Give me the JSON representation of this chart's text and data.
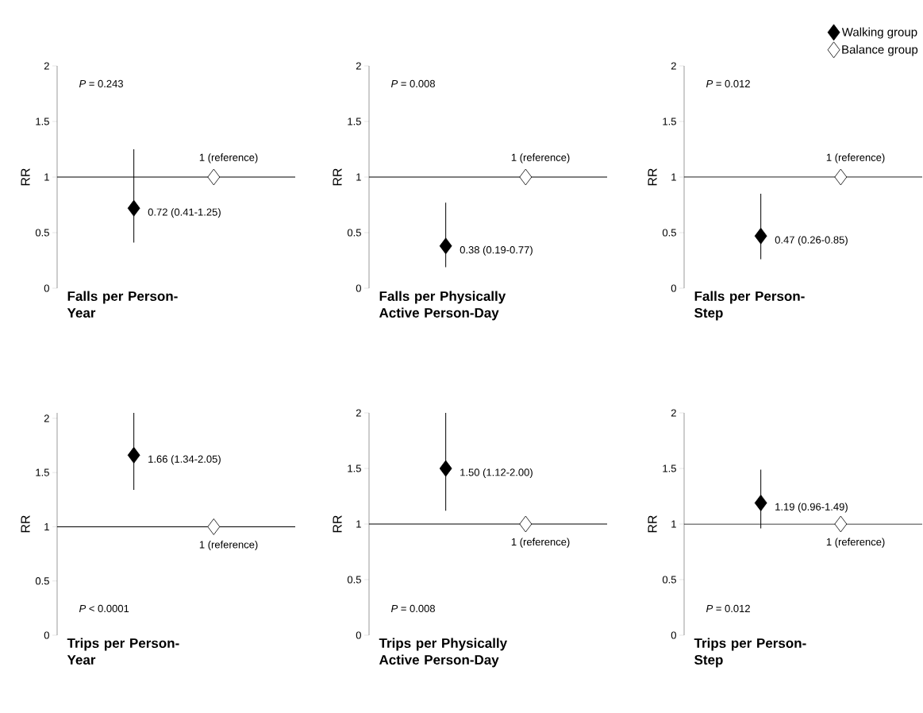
{
  "chart_data": [
    {
      "type": "scatter",
      "xlabel": "Falls per Person-Year",
      "ylabel": "RR",
      "categories": [
        null,
        null
      ],
      "ylim": [
        0,
        2
      ],
      "yticks": [
        0,
        0.5,
        1,
        1.5,
        2
      ],
      "marker": "diamond",
      "annotations": [
        "*P* = 0.243"
      ],
      "ref_lines": [
        {
          "axis": "y",
          "value": 1
        }
      ],
      "series": [
        {
          "color": "#000000",
          "values": [
            0.72,
            null
          ],
          "errors": [
            [
              0.41,
              1.25
            ],
            null
          ],
          "value_labels": [
            "0.72 (0.41-1.25)",
            null
          ]
        },
        {
          "color": "#ffffff",
          "values": [
            null,
            1
          ],
          "value_labels": [
            null,
            "1 (reference)"
          ]
        }
      ]
    },
    {
      "type": "scatter",
      "xlabel": "Falls per Physically Active Person-Day",
      "ylabel": "RR",
      "categories": [
        null,
        null
      ],
      "ylim": [
        0,
        2
      ],
      "yticks": [
        0,
        0.5,
        1,
        1.5,
        2
      ],
      "marker": "diamond",
      "annotations": [
        "*P* = 0.008"
      ],
      "ref_lines": [
        {
          "axis": "y",
          "value": 1
        }
      ],
      "series": [
        {
          "color": "#000000",
          "values": [
            0.38,
            null
          ],
          "errors": [
            [
              0.19,
              0.77
            ],
            null
          ],
          "value_labels": [
            "0.38 (0.19-0.77)",
            null
          ]
        },
        {
          "color": "#ffffff",
          "values": [
            null,
            1
          ],
          "value_labels": [
            null,
            "1 (reference)"
          ]
        }
      ]
    },
    {
      "type": "scatter",
      "xlabel": "Falls per Person-Step",
      "ylabel": "RR",
      "categories": [
        null,
        null
      ],
      "ylim": [
        0,
        2
      ],
      "yticks": [
        0,
        0.5,
        1,
        1.5,
        2
      ],
      "marker": "diamond",
      "legend": "top right",
      "annotations": [
        "*P* = 0.012"
      ],
      "ref_lines": [
        {
          "axis": "y",
          "value": 1
        }
      ],
      "series": [
        {
          "name": "Walking group",
          "color": "#000000",
          "values": [
            0.47,
            null
          ],
          "errors": [
            [
              0.26,
              0.85
            ],
            null
          ],
          "value_labels": [
            "0.47 (0.26-0.85)",
            null
          ]
        },
        {
          "name": "Balance group",
          "color": "#ffffff",
          "values": [
            null,
            1
          ],
          "value_labels": [
            null,
            "1 (reference)"
          ]
        }
      ]
    },
    {
      "type": "scatter",
      "xlabel": "Trips per Person-Year",
      "ylabel": "RR",
      "categories": [
        null,
        null
      ],
      "ylim": [
        0,
        2.05
      ],
      "yticks": [
        0,
        0.5,
        1,
        1.5,
        2
      ],
      "marker": "diamond",
      "annotations": [
        "*P* < 0.0001"
      ],
      "ref_lines": [
        {
          "axis": "y",
          "value": 1
        }
      ],
      "series": [
        {
          "color": "#000000",
          "values": [
            1.66,
            null
          ],
          "errors": [
            [
              1.34,
              2.05
            ],
            null
          ],
          "value_labels": [
            "1.66 (1.34-2.05)",
            null
          ]
        },
        {
          "color": "#ffffff",
          "values": [
            null,
            1
          ],
          "value_labels": [
            null,
            "1 (reference)"
          ]
        }
      ]
    },
    {
      "type": "scatter",
      "xlabel": "Trips per Physically Active Person-Day",
      "ylabel": "RR",
      "categories": [
        null,
        null
      ],
      "ylim": [
        0,
        2
      ],
      "yticks": [
        0,
        0.5,
        1,
        1.5,
        2
      ],
      "marker": "diamond",
      "annotations": [
        "*P* = 0.008"
      ],
      "ref_lines": [
        {
          "axis": "y",
          "value": 1
        }
      ],
      "series": [
        {
          "color": "#000000",
          "values": [
            1.5,
            null
          ],
          "errors": [
            [
              1.12,
              2.0
            ],
            null
          ],
          "value_labels": [
            "1.50 (1.12-2.00)",
            null
          ]
        },
        {
          "color": "#ffffff",
          "values": [
            null,
            1
          ],
          "value_labels": [
            null,
            "1 (reference)"
          ]
        }
      ]
    },
    {
      "type": "scatter",
      "xlabel": "Trips per Person-Step",
      "ylabel": "RR",
      "categories": [
        null,
        null
      ],
      "ylim": [
        0,
        2
      ],
      "yticks": [
        0,
        0.5,
        1,
        1.5,
        2
      ],
      "marker": "diamond",
      "annotations": [
        "*P* = 0.012"
      ],
      "ref_lines": [
        {
          "axis": "y",
          "value": 1
        }
      ],
      "series": [
        {
          "color": "#000000",
          "values": [
            1.19,
            null
          ],
          "errors": [
            [
              0.96,
              1.49
            ],
            null
          ],
          "value_labels": [
            "1.19 (0.96-1.49)",
            null
          ]
        },
        {
          "color": "#ffffff",
          "values": [
            null,
            1
          ],
          "value_labels": [
            null,
            "1 (reference)"
          ]
        }
      ]
    }
  ]
}
